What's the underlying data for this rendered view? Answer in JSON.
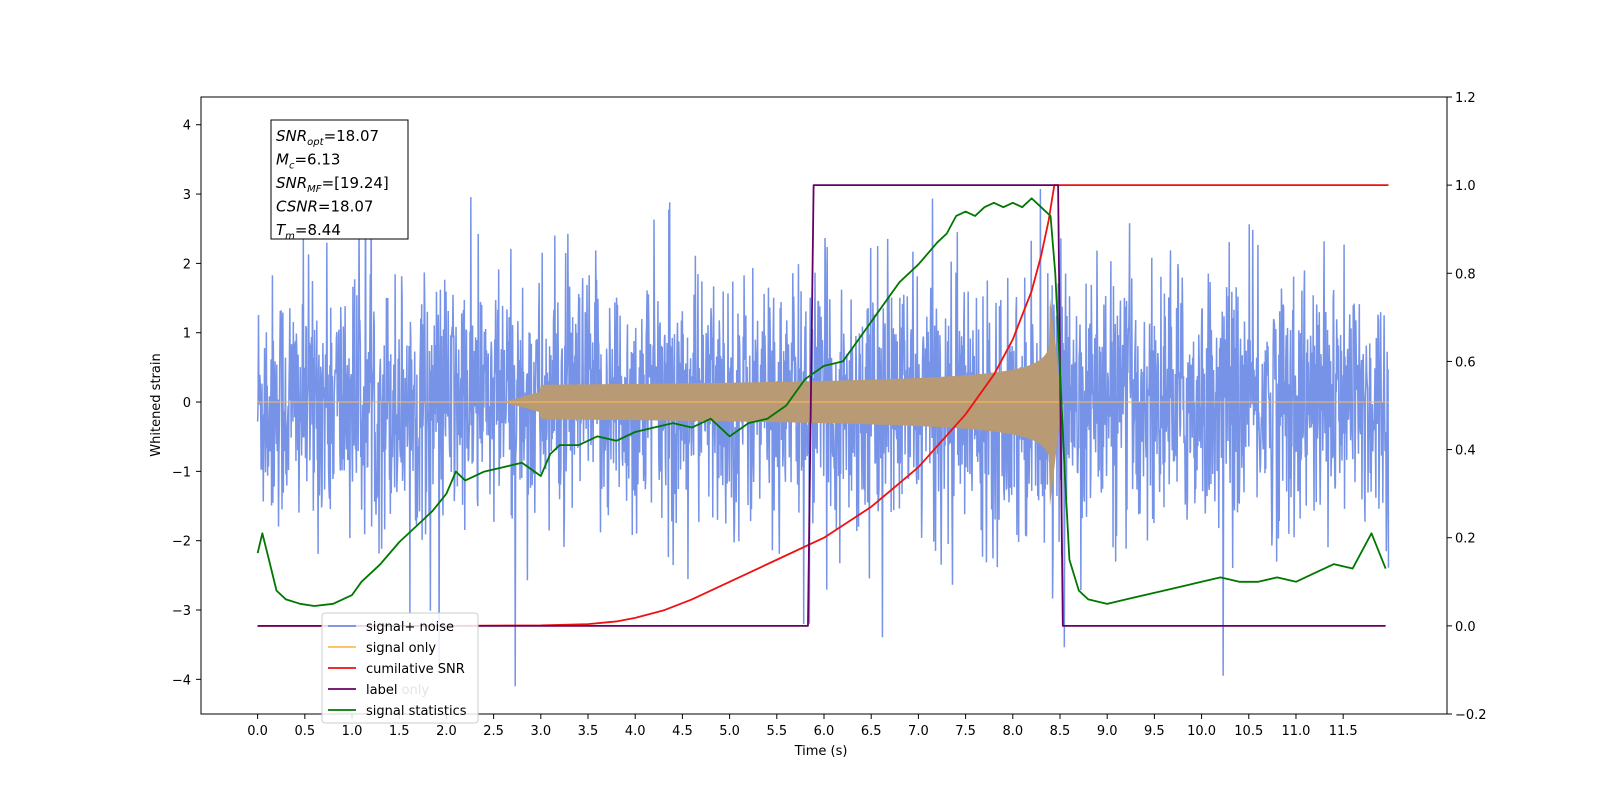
{
  "chart_data": {
    "type": "line",
    "xlabel": "Time (s)",
    "ylabel": "Whitened strain",
    "xlim": [
      -0.6,
      12.6
    ],
    "ylim": [
      -4.5,
      4.4
    ],
    "y2lim": [
      -0.2,
      1.2
    ],
    "xticks": [
      "0.0",
      "0.5",
      "1.0",
      "1.5",
      "2.0",
      "2.5",
      "3.0",
      "3.5",
      "4.0",
      "4.5",
      "5.0",
      "5.5",
      "6.0",
      "6.5",
      "7.0",
      "7.5",
      "8.0",
      "8.5",
      "9.0",
      "9.5",
      "10.0",
      "10.5",
      "11.0",
      "11.5"
    ],
    "yticks": [
      "−4",
      "−3",
      "−2",
      "−1",
      "0",
      "1",
      "2",
      "3",
      "4"
    ],
    "y2ticks": [
      "−0.2",
      "0.0",
      "0.2",
      "0.4",
      "0.6",
      "0.8",
      "1.0",
      "1.2"
    ],
    "info_box": [
      {
        "sym": "SNR",
        "sub": "opt",
        "value": "=18.07"
      },
      {
        "sym": "M",
        "sub": "c",
        "value": "=6.13"
      },
      {
        "sym": "SNR",
        "sub": "MF",
        "value": "=[19.24]"
      },
      {
        "sym": "CSNR",
        "sub": "",
        "value": "=18.07"
      },
      {
        "sym": "T",
        "sub": "m",
        "value": "=8.44"
      }
    ],
    "legend": [
      {
        "label": "signal+ noise",
        "color": "#6f8de6"
      },
      {
        "label": "signal only",
        "color": "#ffbb55"
      },
      {
        "label": "cumilative SNR",
        "color": "#ee1111"
      },
      {
        "label": "label",
        "color": "#660066"
      },
      {
        "label": "signal statistics",
        "color": "#007700"
      }
    ],
    "legend_placement": "lower-left",
    "hidden_legend_text": "label only",
    "series": [
      {
        "name": "signal+ noise",
        "axis": "left",
        "style": "dense-noise",
        "x_range": [
          0.0,
          11.98
        ],
        "sigma": 0.95,
        "color": "#6f8de6"
      },
      {
        "name": "signal only",
        "axis": "left",
        "style": "chirp-envelope",
        "x_range": [
          0.0,
          11.98
        ],
        "merger_time": 8.44,
        "peak_amplitude": 1.55,
        "fill_color": "#b89a74",
        "color": "#ffbb55"
      },
      {
        "name": "cumilative SNR",
        "axis": "right",
        "color": "#ee1111",
        "x": [
          0.0,
          2.0,
          3.0,
          3.5,
          3.8,
          4.0,
          4.3,
          4.6,
          5.0,
          5.5,
          6.0,
          6.5,
          7.0,
          7.5,
          7.8,
          8.0,
          8.2,
          8.3,
          8.38,
          8.44,
          8.5,
          9.0,
          10.0,
          11.0,
          11.98
        ],
        "values": [
          0.0,
          0.0,
          0.001,
          0.004,
          0.01,
          0.018,
          0.035,
          0.06,
          0.1,
          0.15,
          0.2,
          0.27,
          0.36,
          0.48,
          0.57,
          0.65,
          0.76,
          0.84,
          0.92,
          1.0,
          1.0,
          1.0,
          1.0,
          1.0,
          1.0
        ]
      },
      {
        "name": "label",
        "axis": "right",
        "color": "#660066",
        "x": [
          0.0,
          5.83,
          5.89,
          8.48,
          8.53,
          11.95
        ],
        "values": [
          0.0,
          0.0,
          1.0,
          1.0,
          0.0,
          0.0
        ]
      },
      {
        "name": "signal statistics",
        "axis": "right",
        "color": "#007700",
        "x": [
          0.0,
          0.05,
          0.12,
          0.2,
          0.3,
          0.45,
          0.6,
          0.8,
          0.9,
          1.0,
          1.1,
          1.3,
          1.5,
          1.7,
          1.85,
          2.0,
          2.1,
          2.2,
          2.4,
          2.6,
          2.8,
          3.0,
          3.1,
          3.2,
          3.4,
          3.6,
          3.8,
          4.0,
          4.2,
          4.4,
          4.6,
          4.8,
          5.0,
          5.2,
          5.4,
          5.6,
          5.8,
          6.0,
          6.2,
          6.4,
          6.6,
          6.8,
          7.0,
          7.2,
          7.3,
          7.4,
          7.5,
          7.6,
          7.7,
          7.8,
          7.9,
          8.0,
          8.1,
          8.2,
          8.3,
          8.4,
          8.45,
          8.5,
          8.55,
          8.6,
          8.7,
          8.8,
          9.0,
          9.2,
          9.4,
          9.6,
          9.8,
          10.0,
          10.2,
          10.4,
          10.6,
          10.8,
          11.0,
          11.2,
          11.4,
          11.6,
          11.8,
          11.95
        ],
        "values": [
          0.165,
          0.21,
          0.15,
          0.08,
          0.06,
          0.05,
          0.045,
          0.05,
          0.06,
          0.07,
          0.1,
          0.14,
          0.19,
          0.23,
          0.26,
          0.3,
          0.35,
          0.33,
          0.35,
          0.36,
          0.37,
          0.34,
          0.39,
          0.41,
          0.41,
          0.43,
          0.42,
          0.44,
          0.45,
          0.46,
          0.45,
          0.47,
          0.43,
          0.46,
          0.47,
          0.5,
          0.56,
          0.59,
          0.6,
          0.66,
          0.72,
          0.78,
          0.82,
          0.87,
          0.89,
          0.93,
          0.94,
          0.93,
          0.95,
          0.96,
          0.95,
          0.96,
          0.95,
          0.97,
          0.95,
          0.93,
          0.8,
          0.58,
          0.35,
          0.15,
          0.08,
          0.06,
          0.05,
          0.06,
          0.07,
          0.08,
          0.09,
          0.1,
          0.11,
          0.1,
          0.1,
          0.11,
          0.1,
          0.12,
          0.14,
          0.13,
          0.21,
          0.13
        ]
      }
    ]
  }
}
